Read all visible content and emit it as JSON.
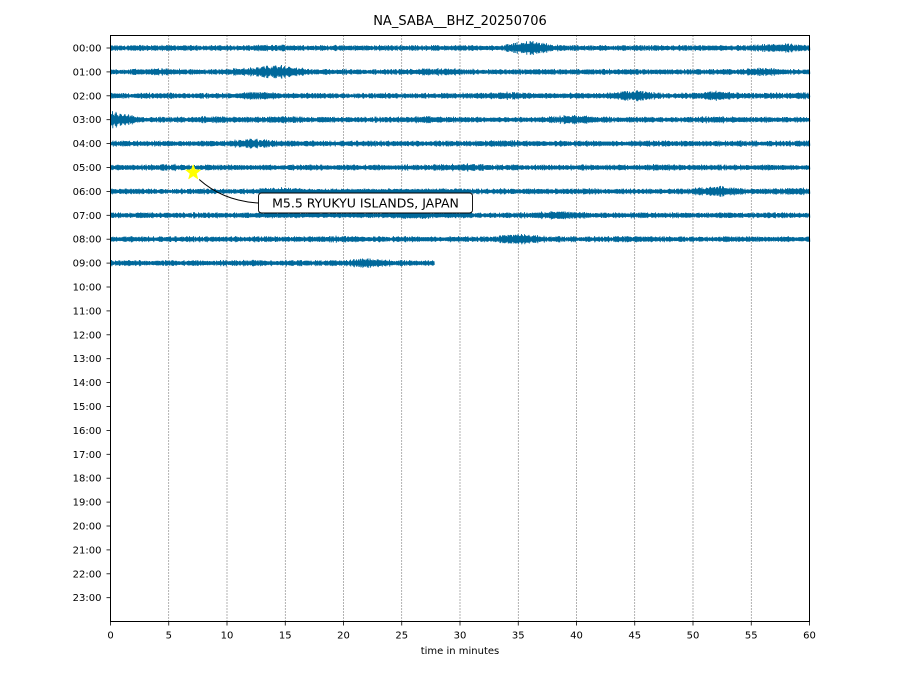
{
  "chart_data": {
    "type": "line",
    "title": "NA_SABA__BHZ_20250706",
    "xlabel": "time in minutes",
    "ylabel": "",
    "xlim": [
      0,
      60
    ],
    "xticks": [
      0,
      5,
      10,
      15,
      20,
      25,
      30,
      35,
      40,
      45,
      50,
      55,
      60
    ],
    "vgrid": true,
    "rows": [
      "00:00",
      "01:00",
      "02:00",
      "03:00",
      "04:00",
      "05:00",
      "06:00",
      "07:00",
      "08:00",
      "09:00",
      "10:00",
      "11:00",
      "12:00",
      "13:00",
      "14:00",
      "15:00",
      "16:00",
      "17:00",
      "18:00",
      "19:00",
      "20:00",
      "21:00",
      "22:00",
      "23:00"
    ],
    "trace_color": "#00689b",
    "traces": [
      {
        "row": "00:00",
        "end_minute": 60,
        "bursts": [
          [
            3,
            1.1
          ],
          [
            15,
            1.2
          ],
          [
            36,
            2.6
          ],
          [
            57.5,
            1.7
          ]
        ]
      },
      {
        "row": "01:00",
        "end_minute": 60,
        "bursts": [
          [
            4,
            1.3
          ],
          [
            12,
            1.5
          ],
          [
            14.6,
            2.4
          ],
          [
            28,
            1.4
          ],
          [
            56,
            1.5
          ]
        ]
      },
      {
        "row": "02:00",
        "end_minute": 60,
        "bursts": [
          [
            13,
            1.5
          ],
          [
            34,
            1.5
          ],
          [
            45,
            1.9
          ],
          [
            52,
            1.7
          ],
          [
            59,
            1.3
          ]
        ]
      },
      {
        "row": "03:00",
        "end_minute": 60,
        "bursts": [
          [
            0.2,
            3.0
          ],
          [
            9,
            1.2
          ],
          [
            15,
            1.3
          ],
          [
            27,
            1.3
          ],
          [
            39.5,
            1.7
          ],
          [
            52,
            1.2
          ]
        ]
      },
      {
        "row": "04:00",
        "end_minute": 60,
        "bursts": [
          [
            12,
            1.7
          ],
          [
            15,
            1.2
          ],
          [
            34,
            1.2
          ],
          [
            47,
            1.1
          ]
        ]
      },
      {
        "row": "05:00",
        "end_minute": 60,
        "bursts": [
          [
            5,
            1.2
          ],
          [
            30,
            1.4
          ],
          [
            47,
            1.2
          ]
        ]
      },
      {
        "row": "06:00",
        "end_minute": 60,
        "bursts": [
          [
            14.5,
            1.4
          ],
          [
            52,
            1.9
          ],
          [
            59,
            1.3
          ]
        ]
      },
      {
        "row": "07:00",
        "end_minute": 60,
        "bursts": [
          [
            26,
            1.3
          ],
          [
            38.5,
            1.6
          ]
        ]
      },
      {
        "row": "08:00",
        "end_minute": 60,
        "bursts": [
          [
            20,
            1.2
          ],
          [
            35,
            2.0
          ],
          [
            46,
            1.1
          ]
        ]
      },
      {
        "row": "09:00",
        "end_minute": 27.8,
        "bursts": [
          [
            12.5,
            1.1
          ],
          [
            22,
            1.8
          ]
        ]
      }
    ],
    "events": [
      {
        "label": "M5.5 RYUKYU ISLANDS, JAPAN",
        "minute": 7.1,
        "row": "05:00",
        "marker": "star",
        "marker_color": "#ffff00"
      }
    ]
  }
}
